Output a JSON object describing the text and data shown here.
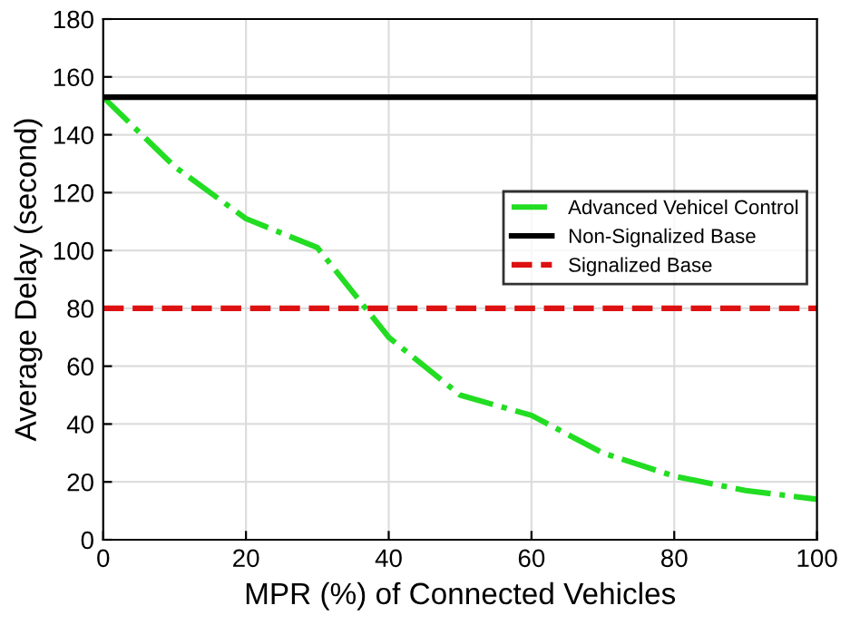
{
  "chart_data": {
    "type": "line",
    "xlabel": "MPR (%) of Connected Vehicles",
    "ylabel": "Average Delay (second)",
    "xlim": [
      0,
      100
    ],
    "xticks": [
      0,
      20,
      40,
      60,
      80,
      100
    ],
    "ylim": [
      0,
      180
    ],
    "yticks": [
      0,
      20,
      40,
      60,
      80,
      100,
      120,
      140,
      160,
      180
    ],
    "grid": true,
    "legend": "right",
    "series": [
      {
        "name": "Advanced Vehicel Control",
        "color": "#22dd22",
        "line_style": "dashdot",
        "x": [
          0,
          10,
          20,
          30,
          40,
          50,
          60,
          70,
          80,
          90,
          100
        ],
        "values": [
          153,
          129,
          111,
          101,
          70,
          50,
          43,
          30,
          22,
          17,
          14
        ]
      },
      {
        "name": "Non-Signalized Base",
        "color": "#000000",
        "line_style": "solid",
        "x": [
          0,
          100
        ],
        "values": [
          153,
          153
        ]
      },
      {
        "name": "Signalized Base",
        "color": "#dd1111",
        "line_style": "dashed",
        "x": [
          0,
          100
        ],
        "values": [
          80,
          80
        ]
      }
    ]
  }
}
